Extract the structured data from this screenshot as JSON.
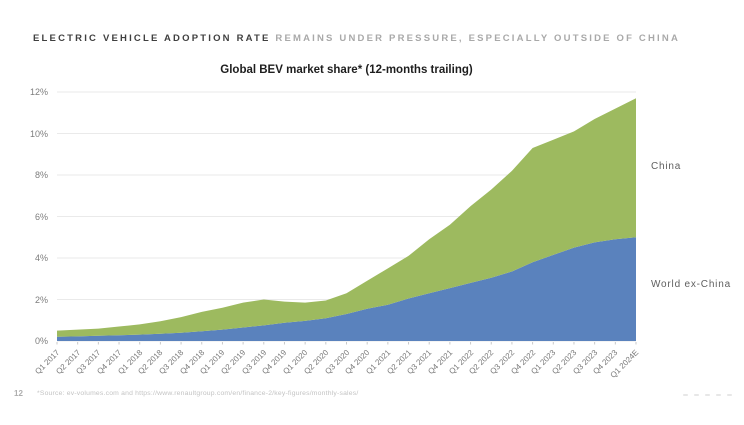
{
  "header": {
    "title_strong": "ELECTRIC VEHICLE ADOPTION RATE",
    "title_muted": " REMAINS UNDER PRESSURE, ESPECIALLY OUTSIDE OF CHINA"
  },
  "chart_data": {
    "type": "area",
    "stacked": true,
    "title": "Global BEV market share* (12-months trailing)",
    "categories": [
      "Q1 2017",
      "Q2 2017",
      "Q3 2017",
      "Q4 2017",
      "Q1 2018",
      "Q2 2018",
      "Q3 2018",
      "Q4 2018",
      "Q1 2019",
      "Q2 2019",
      "Q3 2019",
      "Q4 2019",
      "Q1 2020",
      "Q2 2020",
      "Q3 2020",
      "Q4 2020",
      "Q1 2021",
      "Q2 2021",
      "Q3 2021",
      "Q4 2021",
      "Q1 2022",
      "Q2 2022",
      "Q3 2022",
      "Q4 2022",
      "Q1 2023",
      "Q2 2023",
      "Q3 2023",
      "Q4 2023",
      "Q1 2024E"
    ],
    "series": [
      {
        "name": "World ex-China",
        "color": "#5A82BD",
        "values": [
          0.2,
          0.22,
          0.25,
          0.28,
          0.31,
          0.35,
          0.4,
          0.47,
          0.55,
          0.65,
          0.75,
          0.88,
          0.97,
          1.1,
          1.3,
          1.55,
          1.75,
          2.05,
          2.3,
          2.55,
          2.8,
          3.05,
          3.35,
          3.8,
          4.15,
          4.5,
          4.75,
          4.9,
          5.0
        ]
      },
      {
        "name": "China",
        "color": "#9DBA5F",
        "values": [
          0.3,
          0.33,
          0.35,
          0.42,
          0.49,
          0.6,
          0.75,
          0.93,
          1.05,
          1.2,
          1.25,
          1.02,
          0.88,
          0.85,
          1.0,
          1.35,
          1.75,
          2.05,
          2.6,
          3.05,
          3.7,
          4.25,
          4.85,
          5.5,
          5.55,
          5.6,
          5.95,
          6.3,
          6.7
        ]
      }
    ],
    "totals": [
      0.5,
      0.55,
      0.6,
      0.7,
      0.8,
      0.95,
      1.15,
      1.4,
      1.6,
      1.85,
      2.0,
      1.9,
      1.85,
      1.95,
      2.3,
      2.9,
      3.5,
      4.1,
      4.9,
      5.6,
      6.5,
      7.3,
      8.2,
      9.3,
      9.7,
      10.1,
      10.7,
      11.2,
      11.7
    ],
    "ylim": [
      0,
      12
    ],
    "ytick_step": 2,
    "ytick_suffix": "%",
    "grid": true,
    "grid_color": "#eaeaea",
    "tick_color": "#c9c9c9",
    "legend_position": "right-edge-labels"
  },
  "footer": {
    "page_number": "12",
    "source": "*Source: ev-volumes.com and https://www.renaultgroup.com/en/finance-2/key-figures/monthly-sales/"
  }
}
